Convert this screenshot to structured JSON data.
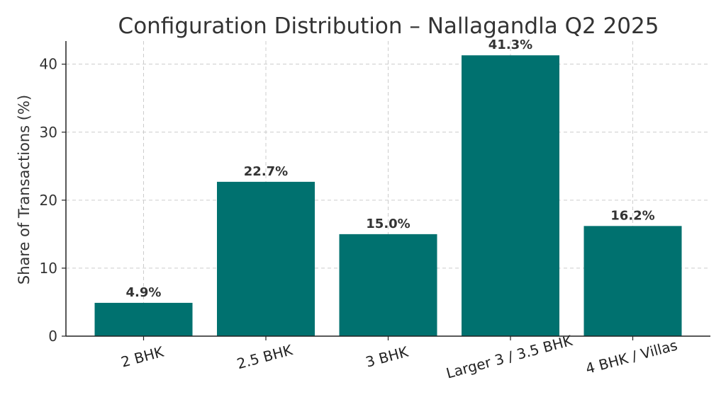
{
  "chart_data": {
    "type": "bar",
    "title": "Configuration Distribution – Nallagandla Q2 2025",
    "xlabel": "",
    "ylabel": "Share of Transactions (%)",
    "categories": [
      "2 BHK",
      "2.5 BHK",
      "3 BHK",
      "Larger 3 / 3.5 BHK",
      "4 BHK / Villas"
    ],
    "values": [
      4.9,
      22.7,
      15.0,
      41.3,
      16.2
    ],
    "data_labels": [
      "4.9%",
      "22.7%",
      "15.0%",
      "41.3%",
      "16.2%"
    ],
    "yticks": [
      0,
      10,
      20,
      30,
      40
    ],
    "ylim": [
      0,
      43.4
    ],
    "grid": true,
    "bar_color": "#00716f"
  }
}
